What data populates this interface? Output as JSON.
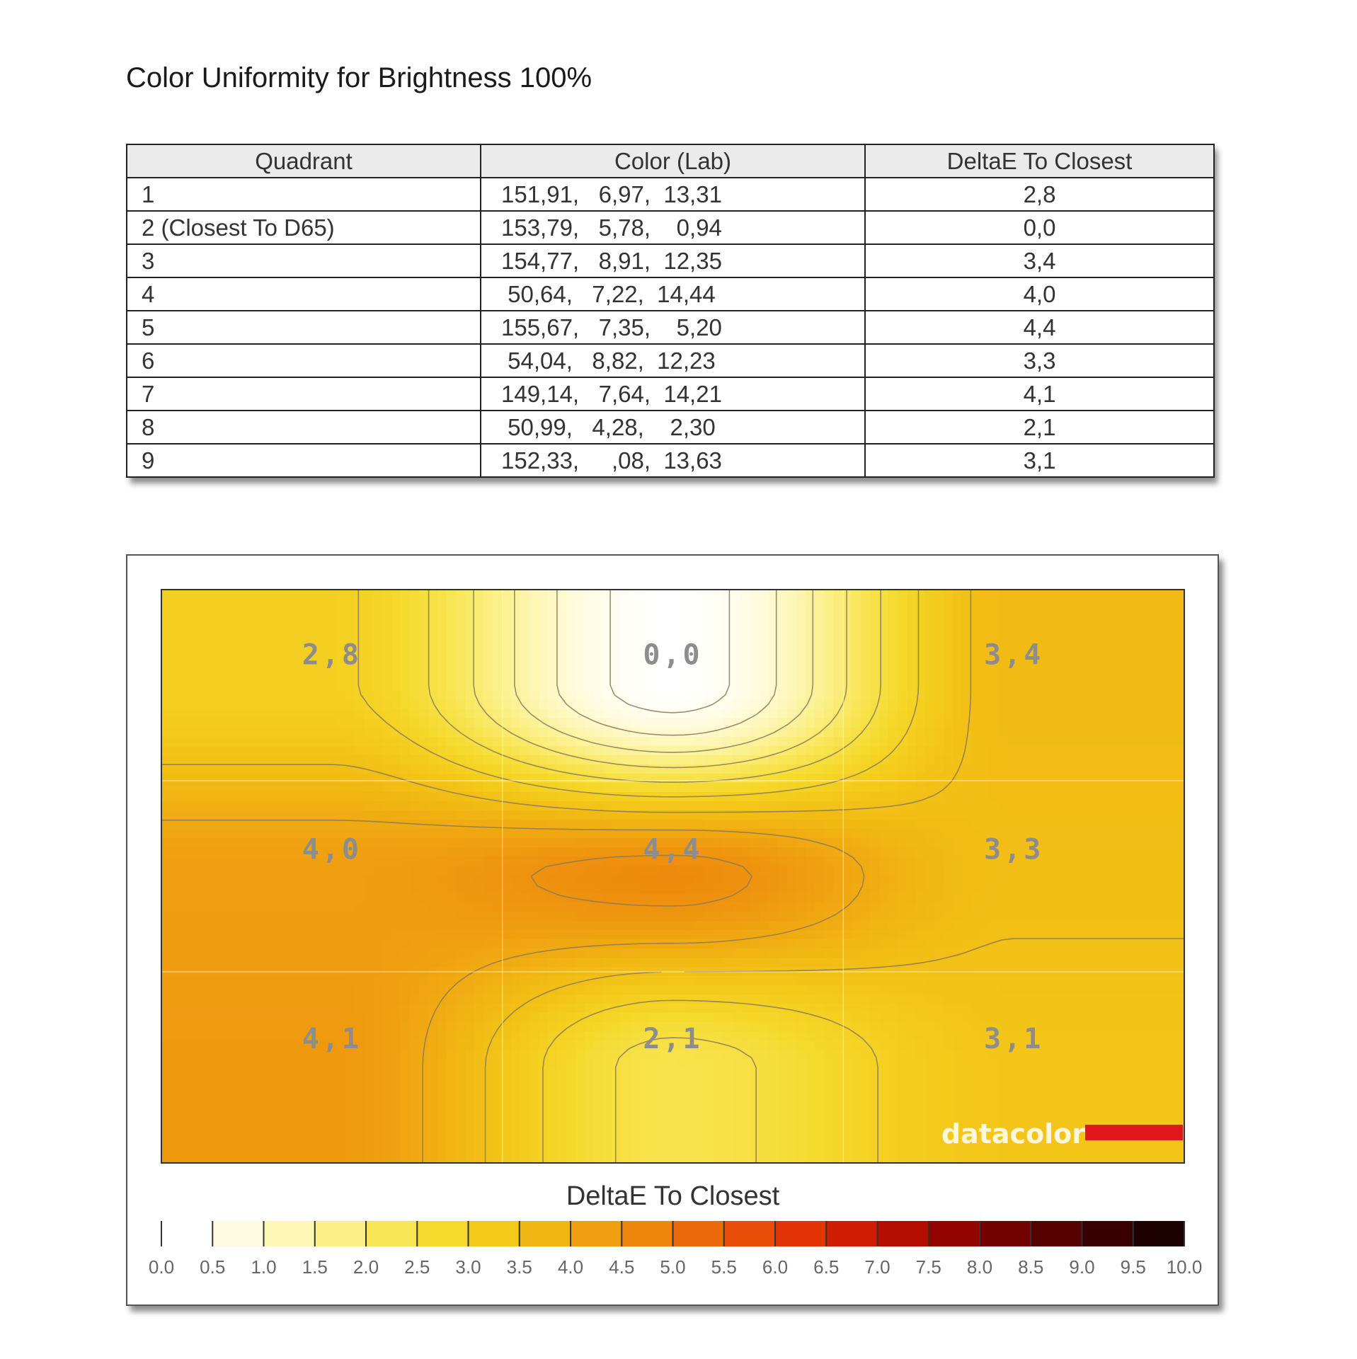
{
  "page": {
    "title": "Color Uniformity for Brightness 100%"
  },
  "table": {
    "headers": [
      "Quadrant",
      "Color (Lab)",
      "DeltaE To Closest"
    ],
    "rows": [
      {
        "quadrant": "1",
        "lab": "151,91,   6,97,  13,31",
        "delta": "2,8"
      },
      {
        "quadrant": "2 (Closest To D65)",
        "lab": "153,79,   5,78,    0,94",
        "delta": "0,0"
      },
      {
        "quadrant": "3",
        "lab": "154,77,   8,91,  12,35",
        "delta": "3,4"
      },
      {
        "quadrant": "4",
        "lab": " 50,64,   7,22,  14,44",
        "delta": "4,0"
      },
      {
        "quadrant": "5",
        "lab": "155,67,   7,35,    5,20",
        "delta": "4,4"
      },
      {
        "quadrant": "6",
        "lab": " 54,04,   8,82,  12,23",
        "delta": "3,3"
      },
      {
        "quadrant": "7",
        "lab": "149,14,   7,64,  14,21",
        "delta": "4,1"
      },
      {
        "quadrant": "8",
        "lab": " 50,99,   4,28,    2,30",
        "delta": "2,1"
      },
      {
        "quadrant": "9",
        "lab": "152,33,     ,08,  13,63",
        "delta": "3,1"
      }
    ]
  },
  "chart_data": {
    "type": "heatmap",
    "title": "",
    "rows": 3,
    "cols": 3,
    "values": [
      [
        2.8,
        0.0,
        3.4
      ],
      [
        4.0,
        4.4,
        3.3
      ],
      [
        4.1,
        2.1,
        3.1
      ]
    ],
    "cell_labels": [
      [
        "2,8",
        "0,0",
        "3,4"
      ],
      [
        "4,0",
        "4,4",
        "3,3"
      ],
      [
        "4,1",
        "2,1",
        "3,1"
      ]
    ],
    "contours": "on",
    "grid": "on",
    "colorbar": {
      "title": "DeltaE To Closest",
      "min": 0,
      "max": 10,
      "step": 0.5,
      "tick_labels": [
        "0.0",
        "0.5",
        "1.0",
        "1.5",
        "2.0",
        "2.5",
        "3.0",
        "3.5",
        "4.0",
        "4.5",
        "5.0",
        "5.5",
        "6.0",
        "6.5",
        "7.0",
        "7.5",
        "8.0",
        "8.5",
        "9.0",
        "9.5",
        "10.0"
      ],
      "colors": [
        "#ffffff",
        "#fffbe0",
        "#fdf6b5",
        "#fbef86",
        "#f8e555",
        "#f5d92c",
        "#f3c91a",
        "#f1b613",
        "#ef9e10",
        "#ee860d",
        "#ec6a0b",
        "#e94e08",
        "#e33405",
        "#cf1d02",
        "#b30c00",
        "#930400",
        "#730200",
        "#560100",
        "#3a0000",
        "#1d0000"
      ]
    },
    "logo": "datacolor"
  }
}
